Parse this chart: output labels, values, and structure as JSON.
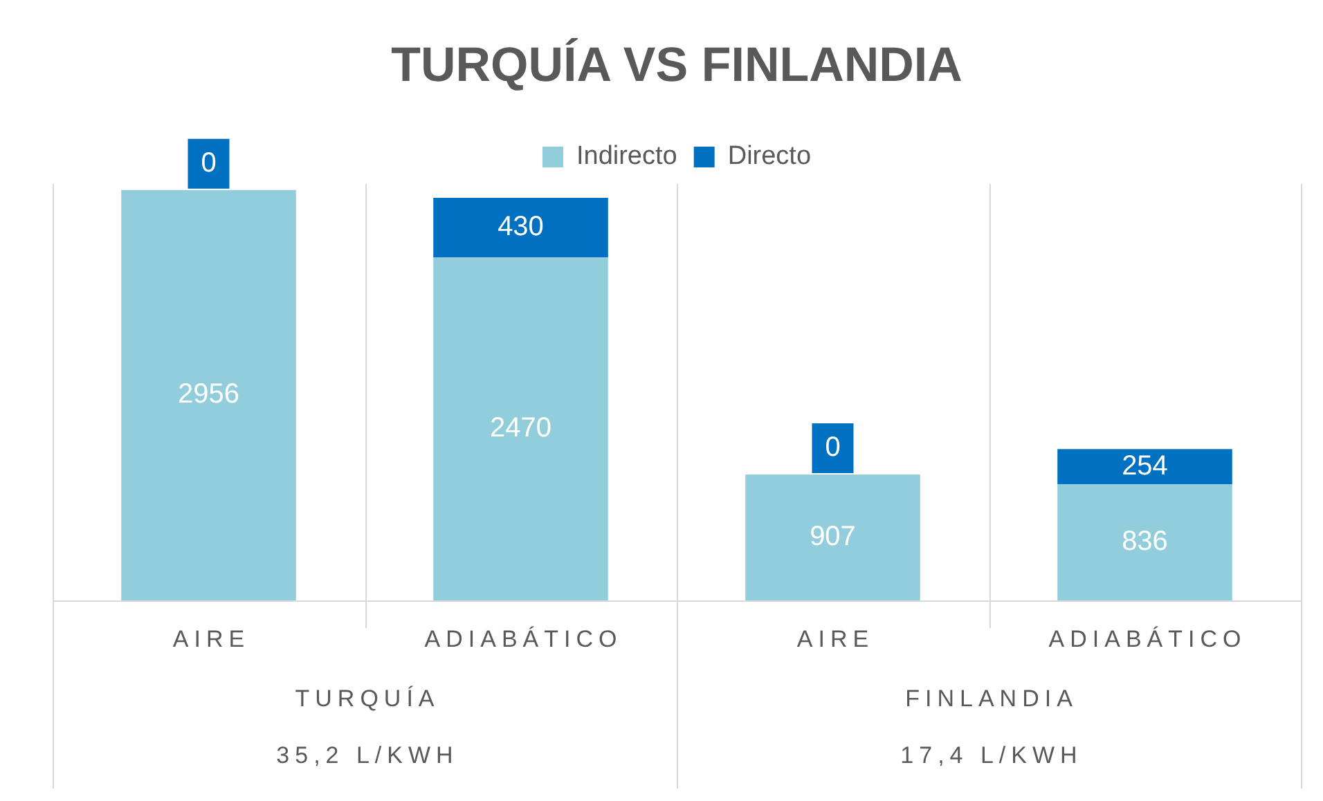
{
  "chart_data": {
    "type": "bar",
    "title": "TURQUÍA VS FINLANDIA",
    "categories": [
      "AIRE",
      "ADIABÁTICO",
      "AIRE",
      "ADIABÁTICO"
    ],
    "series": [
      {
        "name": "Indirecto",
        "color": "#92cddc",
        "values": [
          2956,
          2470,
          907,
          836
        ]
      },
      {
        "name": "Directo",
        "color": "#0070c0",
        "values": [
          0,
          430,
          0,
          254
        ]
      }
    ],
    "stacked": true,
    "data_labels": true,
    "legend": "top",
    "annotations": [
      "TURQUÍA",
      "FINLANDIA",
      "35,2 L/KWH",
      "17,4 L/KWH"
    ]
  }
}
